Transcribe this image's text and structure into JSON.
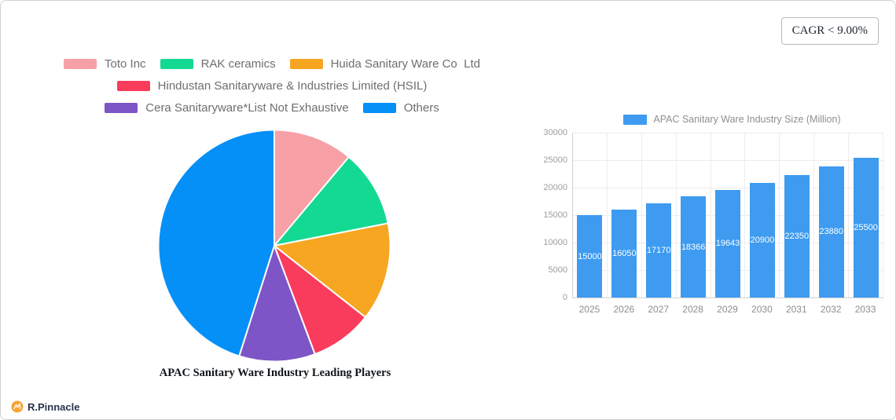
{
  "cagr_badge": {
    "label": "CAGR < 9.00%"
  },
  "logo": {
    "text": "R.Pinnacle",
    "icon": "pinnacle-circle-icon",
    "icon_color": "#F6A432"
  },
  "pie_caption": "APAC Sanitary Ware Industry Leading Players",
  "chart_data": [
    {
      "type": "pie",
      "title": "APAC Sanitary Ware Industry Leading Players",
      "labels": [
        "Toto Inc",
        "RAK ceramics",
        "Huida Sanitary Ware Co  Ltd",
        "Hindustan Sanitaryware & Industries Limited (HSIL)",
        "Cera Sanitaryware*List Not Exhaustive",
        "Others"
      ],
      "values_percent": [
        11.1,
        10.8,
        13.7,
        8.7,
        10.6,
        45.1
      ],
      "colors": [
        "#F7A0A6",
        "#13D992",
        "#F6A621",
        "#FA3C5C",
        "#7D55C7",
        "#0590F8"
      ],
      "start_angle_deg": 0,
      "direction": "clockwise",
      "legend_position": "top",
      "slice_border_color": "#ffffff"
    },
    {
      "type": "bar",
      "legend": "APAC Sanitary Ware Industry Size (Million)",
      "categories": [
        "2025",
        "2026",
        "2027",
        "2028",
        "2029",
        "2030",
        "2031",
        "2032",
        "2033"
      ],
      "values": [
        15000,
        16050,
        17170,
        18366,
        19643,
        20900,
        22350,
        23880,
        25500
      ],
      "bar_color": "#3E9BF0",
      "value_label_color": "#ffffff",
      "ylim": [
        0,
        30000
      ],
      "yticks": [
        0,
        5000,
        10000,
        15000,
        20000,
        25000,
        30000
      ],
      "grid": true,
      "value_labels": "inside-center-white"
    }
  ]
}
